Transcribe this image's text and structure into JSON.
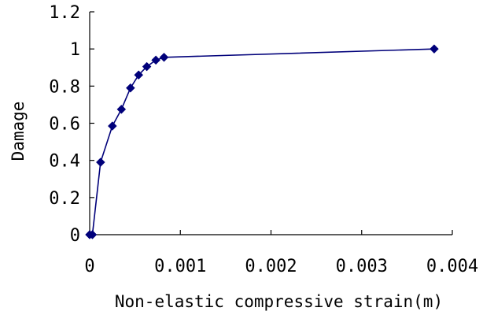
{
  "chart_data": {
    "type": "line",
    "xlabel": "Non-elastic compressive strain(m)",
    "ylabel": "Damage",
    "xlim": [
      0,
      0.004
    ],
    "ylim": [
      0,
      1.2
    ],
    "x_ticks": [
      0,
      0.001,
      0.002,
      0.003,
      0.004
    ],
    "x_tick_labels": [
      "0",
      "0.001",
      "0.002",
      "0.003",
      "0.004"
    ],
    "y_ticks": [
      0,
      0.2,
      0.4,
      0.6,
      0.8,
      1,
      1.2
    ],
    "y_tick_labels": [
      "0",
      "0.2",
      "0.4",
      "0.6",
      "0.8",
      "1",
      "1.2"
    ],
    "grid": false,
    "series": [
      {
        "marker": "diamond",
        "color": "#00007a",
        "points": [
          {
            "x": 0,
            "y": 0
          },
          {
            "x": 3e-05,
            "y": 0
          },
          {
            "x": 0.00012,
            "y": 0.39
          },
          {
            "x": 0.00025,
            "y": 0.585
          },
          {
            "x": 0.00035,
            "y": 0.675
          },
          {
            "x": 0.00045,
            "y": 0.79
          },
          {
            "x": 0.00054,
            "y": 0.86
          },
          {
            "x": 0.00063,
            "y": 0.905
          },
          {
            "x": 0.00073,
            "y": 0.94
          },
          {
            "x": 0.00082,
            "y": 0.955
          },
          {
            "x": 0.0038,
            "y": 1.0
          }
        ]
      }
    ]
  }
}
